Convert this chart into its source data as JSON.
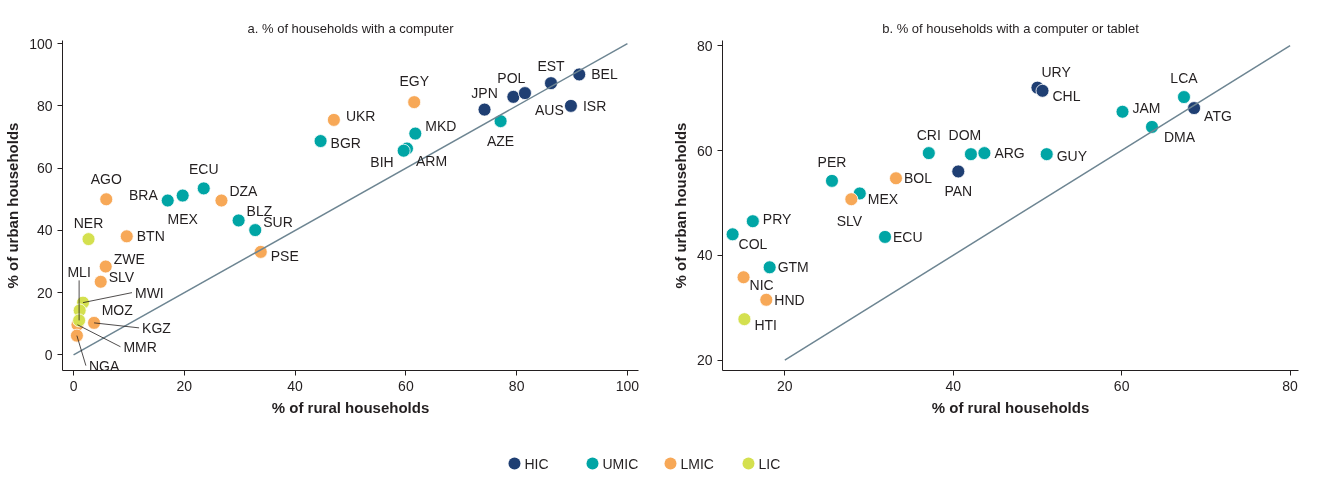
{
  "chart_data": [
    {
      "type": "scatter",
      "title": "a. % of households with a computer",
      "xlabel": "% of rural households",
      "ylabel": "% of urban households",
      "xlim": [
        -2,
        102
      ],
      "ylim": [
        -5,
        101
      ],
      "xticks": [
        0,
        20,
        40,
        60,
        80,
        100
      ],
      "yticks": [
        0,
        20,
        40,
        60,
        80,
        100
      ],
      "grid": false,
      "legend": "bottom",
      "marker": "circle",
      "series": [
        {
          "name": "HIC",
          "color": "#1f3f73",
          "x": [
            74.2,
            79.4,
            81.5,
            86.2,
            91.3,
            89.8
          ],
          "values": [
            78.8,
            82.9,
            84.1,
            87.3,
            90.1,
            80.0
          ]
        },
        {
          "name": "UMIC",
          "color": "#00a5a5",
          "x": [
            77.1,
            61.7,
            60.2,
            59.6,
            44.6,
            23.5,
            17.0,
            19.7,
            29.8,
            32.8
          ],
          "values": [
            75.1,
            71.1,
            66.3,
            65.6,
            68.7,
            53.5,
            49.6,
            51.2,
            43.2,
            40.1
          ]
        },
        {
          "name": "LMIC",
          "color": "#f7a857",
          "x": [
            61.5,
            47.0,
            5.9,
            26.7,
            9.6,
            33.8,
            5.8,
            4.9,
            3.7,
            0.7,
            0.6
          ],
          "values": [
            81.2,
            75.5,
            50.0,
            49.6,
            38.1,
            33.1,
            28.4,
            23.5,
            10.3,
            9.7,
            6.2
          ]
        },
        {
          "name": "LIC",
          "color": "#d4e04f",
          "x": [
            2.7,
            1.7,
            1.1,
            1.0
          ],
          "values": [
            37.2,
            16.8,
            14.3,
            11.1
          ]
        },
        {
          "type": "line",
          "color": "#6d8592",
          "marker": "none",
          "x": [
            0,
            100
          ],
          "values": [
            0,
            100
          ]
        }
      ],
      "annotations": [
        {
          "text": "JPN",
          "x": 74.2,
          "y": 78.8
        },
        {
          "text": "POL",
          "x": 79.4,
          "y": 82.9
        },
        {
          "text": "AUS",
          "x": 81.5,
          "y": 84.1
        },
        {
          "text": "EST",
          "x": 86.2,
          "y": 87.3
        },
        {
          "text": "BEL",
          "x": 91.3,
          "y": 90.1
        },
        {
          "text": "ISR",
          "x": 89.8,
          "y": 80.0
        },
        {
          "text": "AZE",
          "x": 77.1,
          "y": 75.1
        },
        {
          "text": "MKD",
          "x": 61.7,
          "y": 71.1
        },
        {
          "text": "ARM",
          "x": 60.2,
          "y": 66.3
        },
        {
          "text": "BIH",
          "x": 59.6,
          "y": 65.6
        },
        {
          "text": "BGR",
          "x": 44.6,
          "y": 68.7
        },
        {
          "text": "ECU",
          "x": 23.5,
          "y": 53.5
        },
        {
          "text": "BRA",
          "x": 17.0,
          "y": 49.6
        },
        {
          "text": "MEX",
          "x": 19.7,
          "y": 51.2
        },
        {
          "text": "BLZ",
          "x": 29.8,
          "y": 43.2
        },
        {
          "text": "SUR",
          "x": 32.8,
          "y": 40.1
        },
        {
          "text": "EGY",
          "x": 61.5,
          "y": 81.2
        },
        {
          "text": "UKR",
          "x": 47.0,
          "y": 75.5
        },
        {
          "text": "AGO",
          "x": 5.9,
          "y": 50.0
        },
        {
          "text": "DZA",
          "x": 26.7,
          "y": 49.6
        },
        {
          "text": "BTN",
          "x": 9.6,
          "y": 38.1
        },
        {
          "text": "PSE",
          "x": 33.8,
          "y": 33.1
        },
        {
          "text": "ZWE",
          "x": 5.8,
          "y": 28.4
        },
        {
          "text": "SLV",
          "x": 4.9,
          "y": 23.5
        },
        {
          "text": "NER",
          "x": 2.7,
          "y": 37.2
        },
        {
          "text": "MWI",
          "x": 1.7,
          "y": 16.8
        },
        {
          "text": "MOZ",
          "x": 1.1,
          "y": 14.3
        },
        {
          "text": "MLI",
          "x": 1.0,
          "y": 11.1
        },
        {
          "text": "KGZ",
          "x": 3.7,
          "y": 10.3
        },
        {
          "text": "MMR",
          "x": 0.7,
          "y": 9.7
        },
        {
          "text": "NGA",
          "x": 0.6,
          "y": 6.2
        }
      ]
    },
    {
      "type": "scatter",
      "title": "b. % of households with a computer or tablet",
      "xlabel": "% of rural households",
      "ylabel": "% of urban households",
      "xlim": [
        12.6,
        81
      ],
      "ylim": [
        18,
        81
      ],
      "xticks": [
        20,
        40,
        60,
        80
      ],
      "yticks": [
        20,
        40,
        60,
        80
      ],
      "grid": false,
      "legend": "bottom",
      "marker": "circle",
      "series": [
        {
          "name": "HIC",
          "color": "#1f3f73",
          "x": [
            50.0,
            50.6,
            40.6,
            68.6
          ],
          "values": [
            72.0,
            71.4,
            56.0,
            68.1
          ]
        },
        {
          "name": "UMIC",
          "color": "#00a5a5",
          "x": [
            67.4,
            60.1,
            63.6,
            37.1,
            42.1,
            43.7,
            51.1,
            25.6,
            28.9,
            16.2,
            13.8,
            31.9,
            18.2
          ],
          "values": [
            70.2,
            67.4,
            64.5,
            59.5,
            59.3,
            59.5,
            59.3,
            54.2,
            51.8,
            46.5,
            44.0,
            43.5,
            37.7
          ]
        },
        {
          "name": "LMIC",
          "color": "#f7a857",
          "x": [
            33.2,
            27.9,
            15.1,
            17.8
          ],
          "values": [
            54.7,
            50.7,
            35.8,
            31.5
          ]
        },
        {
          "name": "LIC",
          "color": "#d4e04f",
          "x": [
            15.2
          ],
          "values": [
            27.8
          ]
        },
        {
          "type": "line",
          "color": "#6d8592",
          "marker": "none",
          "x": [
            20,
            80
          ],
          "values": [
            20,
            80
          ]
        }
      ],
      "annotations": [
        {
          "text": "URY",
          "x": 50.0,
          "y": 72.0
        },
        {
          "text": "CHL",
          "x": 50.6,
          "y": 71.4
        },
        {
          "text": "PAN",
          "x": 40.6,
          "y": 56.0
        },
        {
          "text": "ATG",
          "x": 68.6,
          "y": 68.1
        },
        {
          "text": "LCA",
          "x": 67.4,
          "y": 70.2
        },
        {
          "text": "JAM",
          "x": 60.1,
          "y": 67.4
        },
        {
          "text": "DMA",
          "x": 63.6,
          "y": 64.5
        },
        {
          "text": "CRI",
          "x": 37.1,
          "y": 59.5
        },
        {
          "text": "DOM",
          "x": 42.1,
          "y": 59.3
        },
        {
          "text": "ARG",
          "x": 43.7,
          "y": 59.5
        },
        {
          "text": "GUY",
          "x": 51.1,
          "y": 59.3
        },
        {
          "text": "PER",
          "x": 25.6,
          "y": 54.2
        },
        {
          "text": "MEX",
          "x": 28.9,
          "y": 51.8
        },
        {
          "text": "PRY",
          "x": 16.2,
          "y": 46.5
        },
        {
          "text": "COL",
          "x": 13.8,
          "y": 44.0
        },
        {
          "text": "ECU",
          "x": 31.9,
          "y": 43.5
        },
        {
          "text": "GTM",
          "x": 18.2,
          "y": 37.7
        },
        {
          "text": "BOL",
          "x": 33.2,
          "y": 54.7
        },
        {
          "text": "SLV",
          "x": 27.9,
          "y": 50.7
        },
        {
          "text": "NIC",
          "x": 15.1,
          "y": 35.8
        },
        {
          "text": "HND",
          "x": 17.8,
          "y": 31.5
        },
        {
          "text": "HTI",
          "x": 15.2,
          "y": 27.8
        }
      ]
    }
  ]
}
